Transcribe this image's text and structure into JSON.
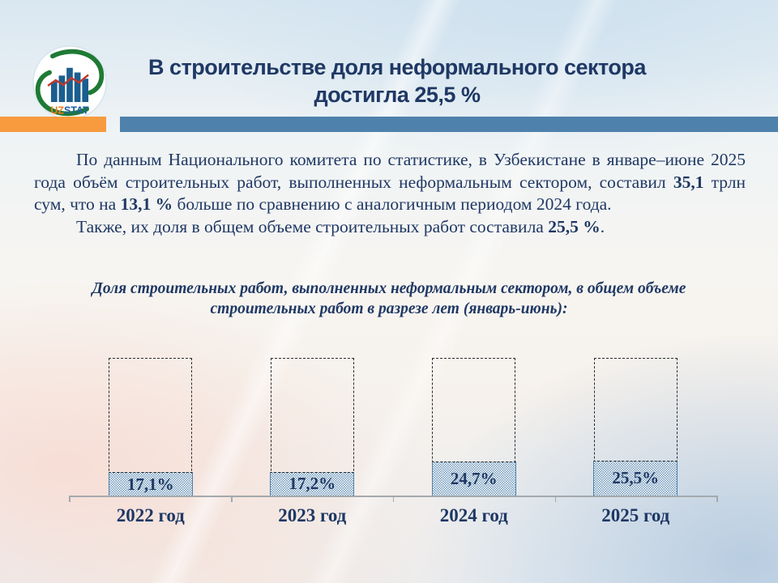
{
  "slide": {
    "title_line1": "В строительстве доля неформального сектора",
    "title_line2": "достигла 25,5 %"
  },
  "logo": {
    "brand_prefix": "UZ",
    "brand_suffix": "STAT"
  },
  "body": {
    "p1": [
      {
        "t": "По данным Национального комитета по статистике, в Узбекистане в январе–июне 2025 года объём строительных работ, выполненных неформальным сектором, составил ",
        "b": false
      },
      {
        "t": "35,1",
        "b": true
      },
      {
        "t": " трлн сум, что на ",
        "b": false
      },
      {
        "t": "13,1 %",
        "b": true
      },
      {
        "t": " больше по сравнению с аналогичным периодом 2024 года.",
        "b": false
      }
    ],
    "p2": [
      {
        "t": "Также, их доля в общем объеме строительных работ составила ",
        "b": false
      },
      {
        "t": "25,5 %",
        "b": true
      },
      {
        "t": ".",
        "b": false
      }
    ]
  },
  "chart_caption": [
    {
      "t": "Доля строительных работ, выполненных неформальным сектором, в общем объеме строительных работ в разрезе лет ",
      "b": true
    },
    {
      "t": "(январь-июнь):",
      "b": false
    }
  ],
  "chart_data": {
    "type": "bar",
    "title": "Доля строительных работ, выполненных неформальным сектором, в общем объеме строительных работ в разрезе лет (январь-июнь)",
    "categories": [
      "2022 год",
      "2023 год",
      "2024 год",
      "2025 год"
    ],
    "values": [
      17.1,
      17.2,
      24.7,
      25.5
    ],
    "value_labels": [
      "17,1%",
      "17,2%",
      "24,7%",
      "25,5%"
    ],
    "ylim": [
      0,
      100
    ],
    "grid": false,
    "legend": false,
    "annotation": "dashed outline around each bar marks the 100% level"
  },
  "colors": {
    "navy": "#1f3864",
    "orange": "#f79b3e",
    "steel": "#4e81ac",
    "axis": "#a3a9ad"
  }
}
